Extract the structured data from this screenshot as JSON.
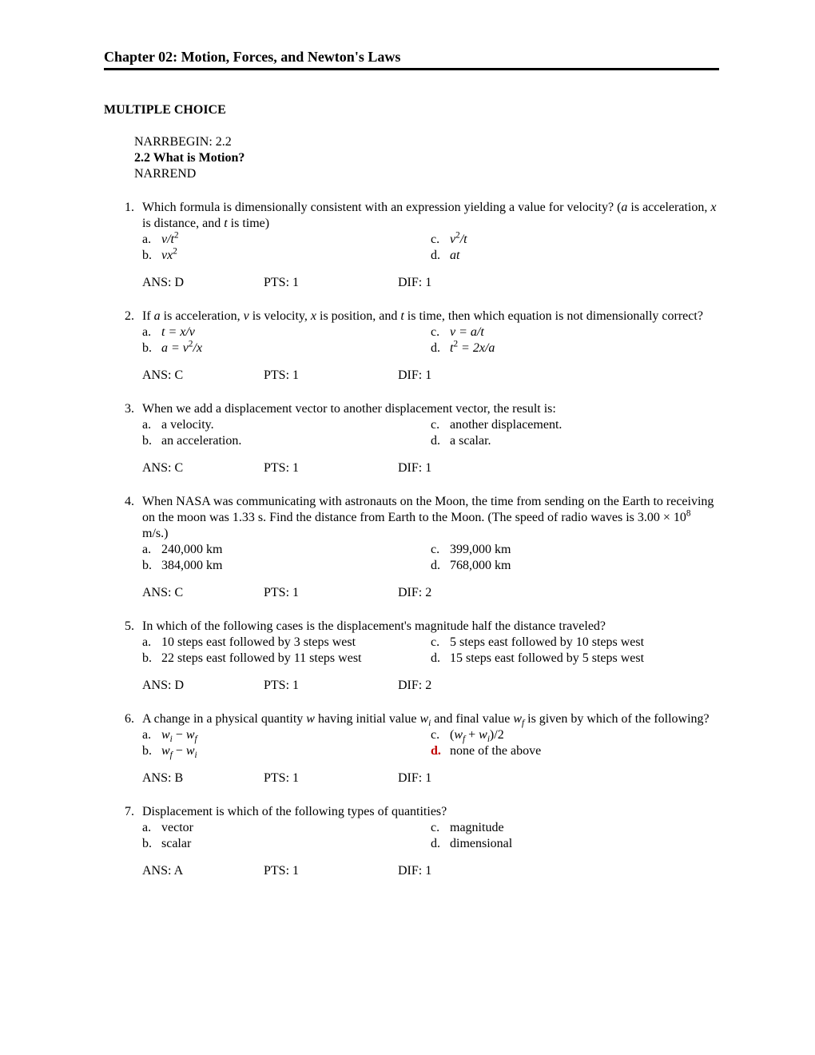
{
  "chapter_title": "Chapter 02: Motion, Forces, and Newton's Laws",
  "section_heading": "MULTIPLE CHOICE",
  "narr": {
    "begin": "NARRBEGIN: 2.2",
    "title": "2.2 What is Motion?",
    "end": "NARREND"
  },
  "questions": [
    {
      "num": "1.",
      "stem_html": "Which formula is dimensionally consistent with an expression yielding a value for velocity? (<span class=\"italic\">a</span> is acceleration, <span class=\"italic\">x</span> is distance, and <span class=\"italic\">t</span> is time)",
      "opts": {
        "a": "<span class=\"italic\">v/t</span><sup>2</sup>",
        "b": "<span class=\"italic\">vx</span><sup>2</sup>",
        "c": "<span class=\"italic\">v</span><sup>2</sup><span class=\"italic\">/t</span>",
        "d": "<span class=\"italic\">at</span>"
      },
      "ans": "ANS:  D",
      "pts": "PTS:   1",
      "dif": "DIF:    1"
    },
    {
      "num": "2.",
      "stem_html": "If <span class=\"italic\">a</span> is acceleration, <span class=\"italic\">v</span> is velocity, <span class=\"italic\">x</span> is position, and <span class=\"italic\">t</span> is time, then which equation is not dimensionally correct?",
      "opts": {
        "a": "<span class=\"italic\">t = x/v</span>",
        "b": "<span class=\"italic\">a = v</span><sup>2</sup><span class=\"italic\">/x</span>",
        "c": "<span class=\"italic\">v = a/t</span>",
        "d": "<span class=\"italic\">t</span><sup>2</sup><span class=\"italic\"> = 2x/a</span>"
      },
      "ans": "ANS:  C",
      "pts": "PTS:   1",
      "dif": "DIF:    1"
    },
    {
      "num": "3.",
      "stem_html": "When we add a displacement vector to another displacement vector, the result is:",
      "opts": {
        "a": "a velocity.",
        "b": "an acceleration.",
        "c": "another displacement.",
        "d": "a scalar."
      },
      "ans": "ANS:  C",
      "pts": "PTS:   1",
      "dif": "DIF:    1"
    },
    {
      "num": "4.",
      "stem_html": "When NASA was communicating with astronauts on the Moon, the time from sending on the Earth to receiving on the moon was 1.33 s. Find the distance from Earth to the Moon. (The speed of radio waves is 3.00 × 10<sup>8</sup> m/s.)",
      "opts": {
        "a": "240,000 km",
        "b": "384,000 km",
        "c": "399,000 km",
        "d": "768,000 km"
      },
      "ans": "ANS:  C",
      "pts": "PTS:   1",
      "dif": "DIF:    2"
    },
    {
      "num": "5.",
      "stem_html": "In which of the following cases is the displacement's magnitude half the distance traveled?",
      "opts": {
        "a": "10 steps east followed by 3 steps west",
        "b": "22 steps east followed by 11 steps west",
        "c": "5 steps east followed by 10 steps west",
        "d": "15 steps east followed by 5 steps west"
      },
      "ans": "ANS:  D",
      "pts": "PTS:   1",
      "dif": "DIF:    2"
    },
    {
      "num": "6.",
      "stem_html": "A change in a physical quantity <span class=\"italic\">w</span> having initial value <span class=\"italic\">w<sub>i</sub></span> and final value <span class=\"italic\">w<sub>f</sub></span> is given by which of the following?",
      "opts": {
        "a": "<span class=\"italic\">w<sub>i</sub></span> − <span class=\"italic\">w<sub>f</sub></span>",
        "b": "<span class=\"italic\">w<sub>f</sub></span> − <span class=\"italic\">w<sub>i</sub></span>",
        "c": "(<span class=\"italic\">w<sub>f</sub></span> + <span class=\"italic\">w<sub>i</sub></span>)/2",
        "d": "none of the above"
      },
      "d_letter_class": "bold-red",
      "ans": "ANS:  B",
      "pts": "PTS:   1",
      "dif": "DIF:    1"
    },
    {
      "num": "7.",
      "stem_html": "Displacement is which of the following types of quantities?",
      "opts": {
        "a": "vector",
        "b": "scalar",
        "c": "magnitude",
        "d": "dimensional"
      },
      "ans": "ANS:  A",
      "pts": "PTS:   1",
      "dif": "DIF:    1"
    }
  ]
}
